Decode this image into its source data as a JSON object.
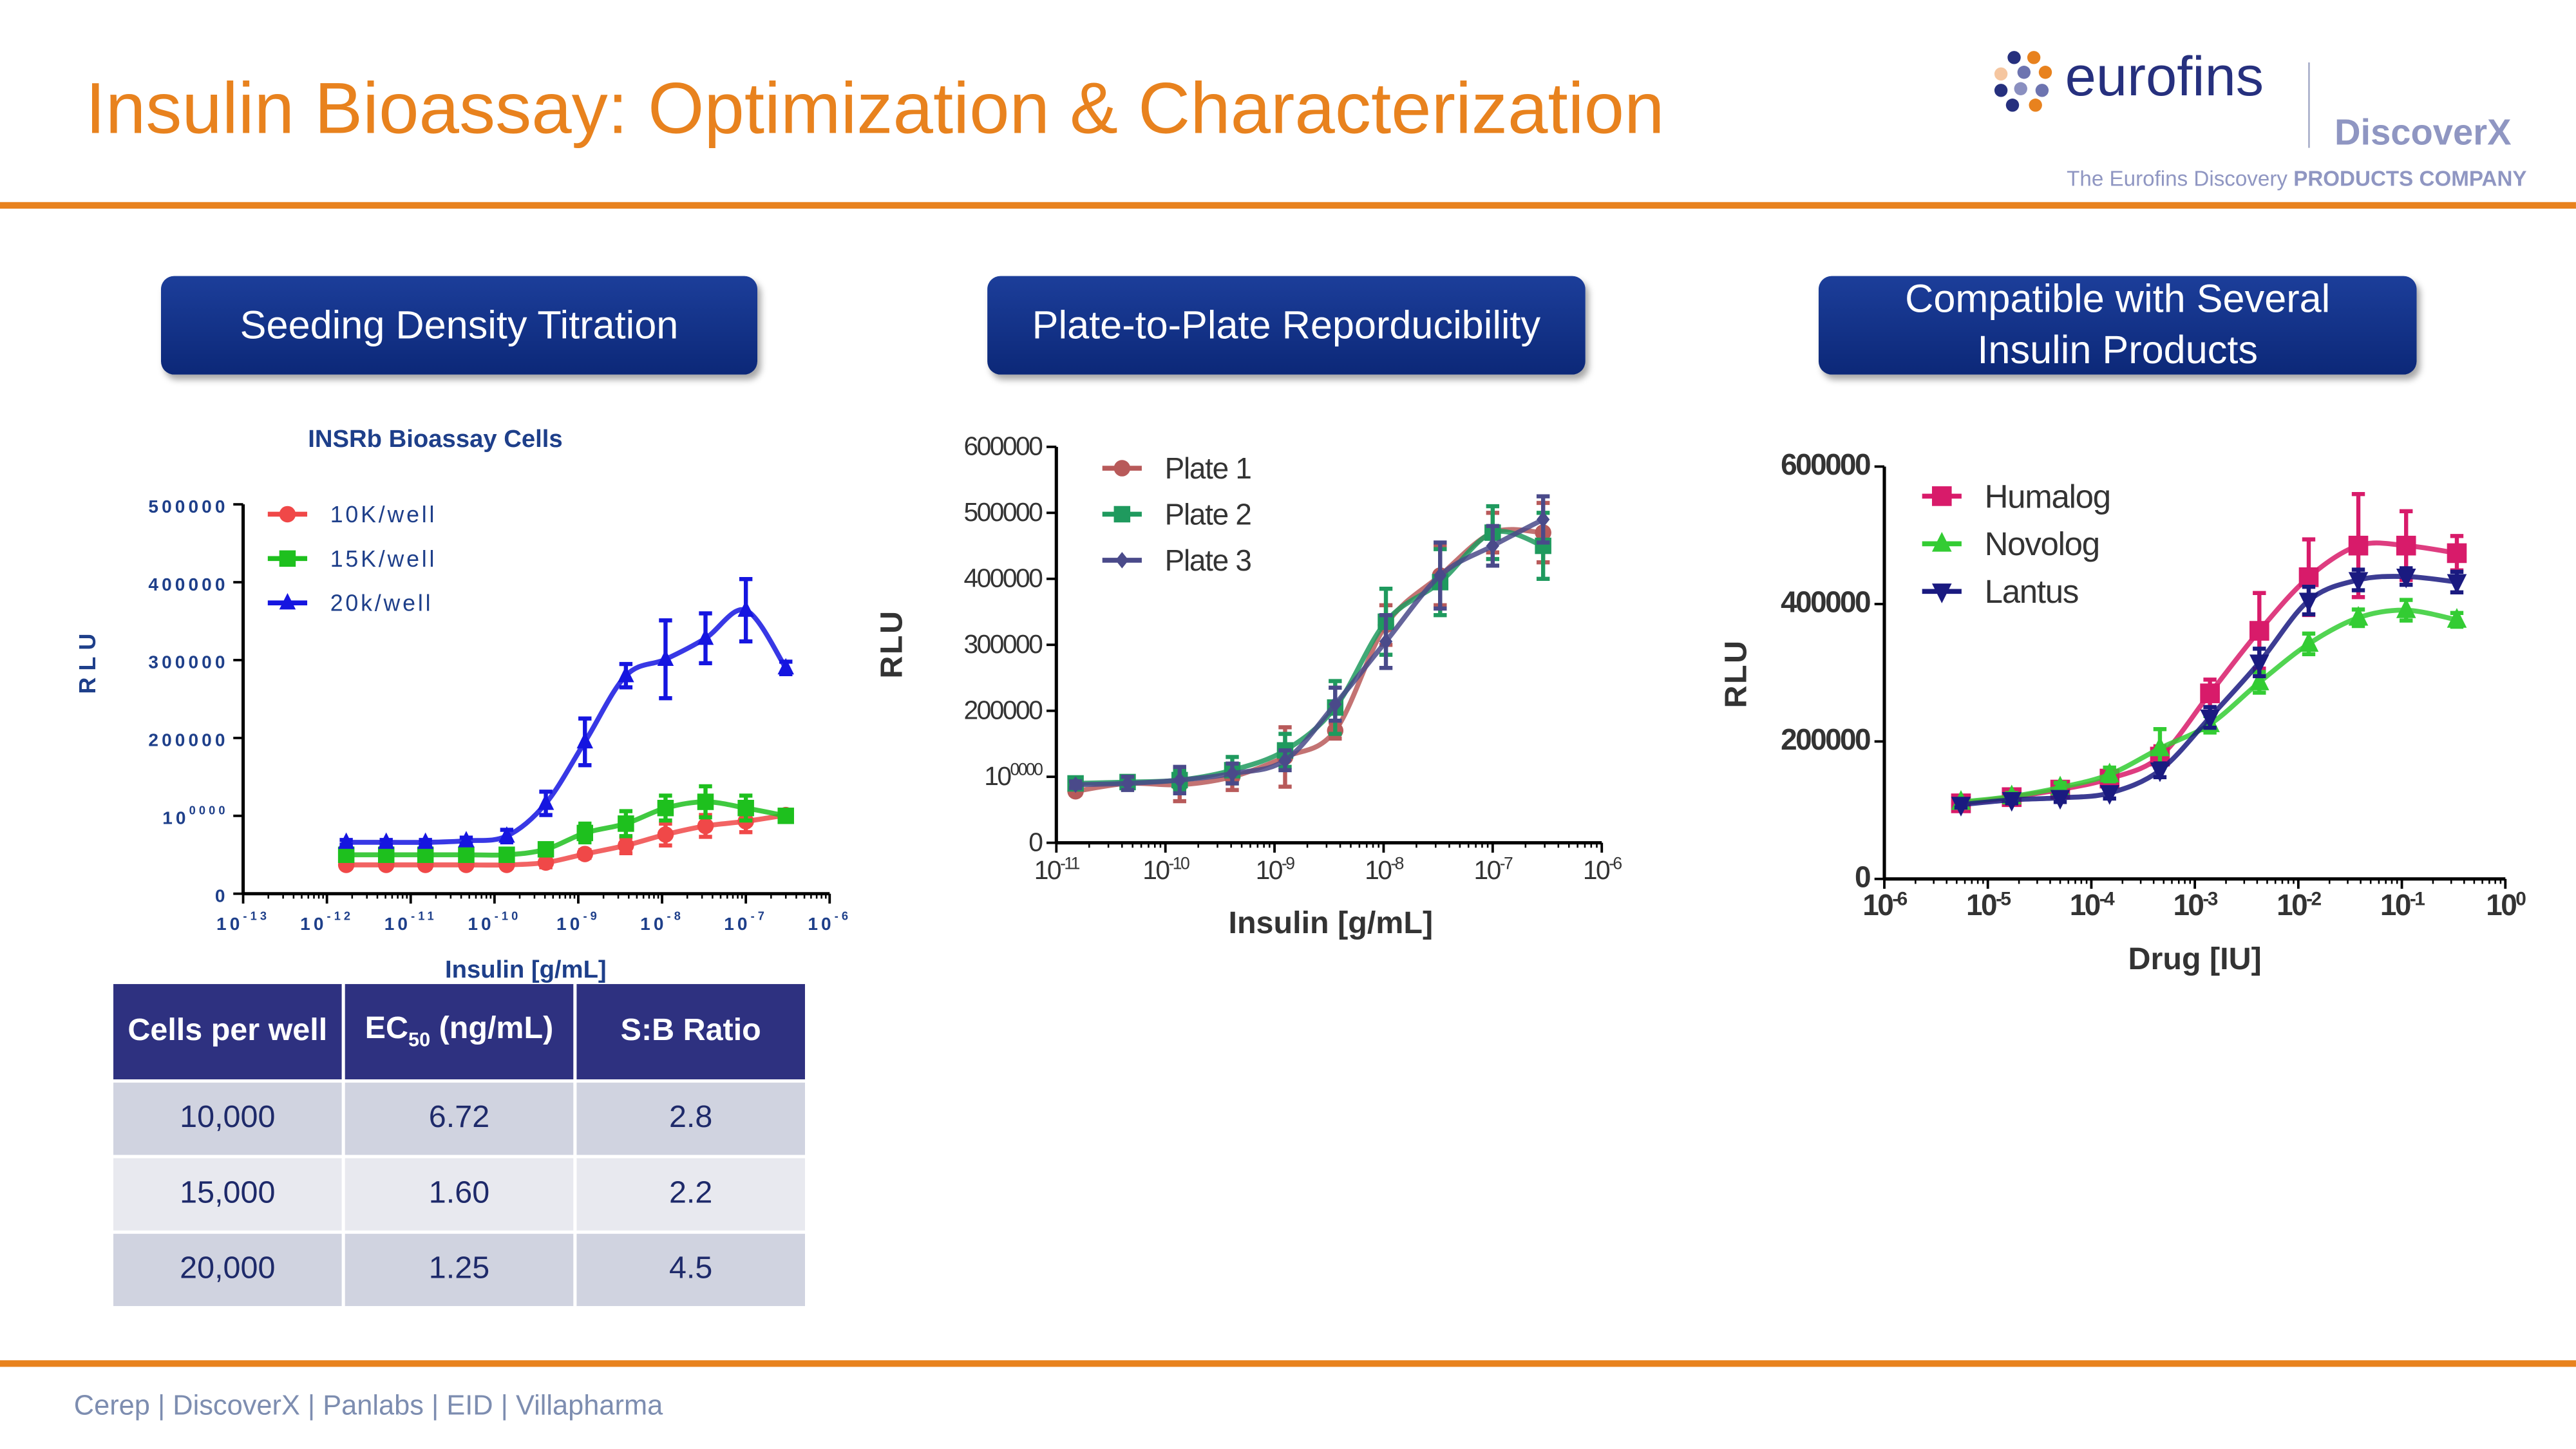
{
  "header": {
    "title": "Insulin Bioassay: Optimization & Characterization",
    "logo": {
      "brand": "eurofins",
      "sub_brand": "DiscoverX",
      "tagline_light": "The Eurofins Discovery ",
      "tagline_bold": "PRODUCTS COMPANY"
    }
  },
  "accent_color": "#E8821E",
  "sections": [
    {
      "label": "Seeding Density Titration"
    },
    {
      "label": "Plate-to-Plate Reporducibility"
    },
    {
      "label": "Compatible with Several Insulin Products"
    }
  ],
  "table": {
    "headers": {
      "cells": "Cells per well",
      "ec50_main": "EC",
      "ec50_sub": "50",
      "ec50_unit": " (ng/mL)",
      "sb": "S:B Ratio"
    },
    "rows": [
      [
        "10,000",
        "6.72",
        "2.8"
      ],
      [
        "15,000",
        "1.60",
        "2.2"
      ],
      [
        "20,000",
        "1.25",
        "4.5"
      ]
    ]
  },
  "footer": {
    "text": "Cerep | DiscoverX | Panlabs | EID | Villapharma"
  },
  "chart_data": [
    {
      "type": "scatter",
      "title": "INSRb Bioassay Cells",
      "xlabel": "Insulin [g/mL]",
      "ylabel": "RLU",
      "xscale": "log",
      "xlim": [
        1e-13,
        1e-06
      ],
      "ylim": [
        0,
        500000
      ],
      "xticks": [
        "10 -13",
        "10 -12",
        "10 -11",
        "10 -10",
        "10 -9",
        "10 -8",
        "10 -7",
        "10 -6"
      ],
      "yticks": [
        "0",
        "100000",
        "200000",
        "300000",
        "400000",
        "500000"
      ],
      "legend": "top-left",
      "grid": false,
      "x": [
        1.7e-12,
        5.1e-12,
        1.5e-11,
        4.6e-11,
        1.4e-10,
        4.1e-10,
        1.2e-09,
        3.7e-09,
        1.1e-08,
        3.3e-08,
        1e-07,
        3e-07
      ],
      "series": [
        {
          "name": "10K/well",
          "color": "#f04848",
          "marker": "circle",
          "values": [
            37000,
            37000,
            37000,
            37000,
            37000,
            40000,
            51000,
            62000,
            76000,
            87000,
            93000,
            101000
          ],
          "errors": [
            4000,
            4000,
            4000,
            4000,
            4000,
            6000,
            5000,
            10000,
            14000,
            14000,
            14000,
            5000
          ]
        },
        {
          "name": "15K/well",
          "color": "#1ec01e",
          "marker": "square",
          "values": [
            50000,
            50000,
            50000,
            50000,
            50000,
            57000,
            78000,
            90000,
            110000,
            118000,
            110000,
            100000
          ],
          "errors": [
            4000,
            4000,
            4000,
            4000,
            4000,
            6000,
            12000,
            16000,
            16000,
            20000,
            16000,
            5000
          ]
        },
        {
          "name": "20k/well",
          "color": "#1515e0",
          "marker": "triangle",
          "values": [
            66000,
            66000,
            66000,
            68000,
            74000,
            116000,
            195000,
            280000,
            301000,
            328000,
            364000,
            290000
          ],
          "errors": [
            3000,
            3000,
            3000,
            4000,
            8000,
            15000,
            30000,
            15000,
            50000,
            32000,
            40000,
            8000
          ]
        }
      ]
    },
    {
      "type": "scatter",
      "title": "",
      "xlabel": "Insulin [g/mL]",
      "ylabel": "RLU",
      "xscale": "log",
      "xlim": [
        1e-11,
        1e-06
      ],
      "ylim": [
        0,
        600000
      ],
      "xticks": [
        "10-11",
        "10-10",
        "10-9",
        "10-8",
        "10-7",
        "10-6"
      ],
      "yticks": [
        "0",
        "100000",
        "200000",
        "300000",
        "400000",
        "500000",
        "600000"
      ],
      "legend": "top-left",
      "grid": false,
      "x": [
        1.5e-11,
        4.5e-11,
        1.35e-10,
        4.1e-10,
        1.25e-09,
        3.6e-09,
        1.05e-08,
        3.3e-08,
        1e-07,
        2.9e-07
      ],
      "series": [
        {
          "name": "Plate 1",
          "color": "#b85a5a",
          "marker": "circle",
          "values": [
            78000,
            90000,
            88000,
            100000,
            130000,
            170000,
            330000,
            405000,
            470000,
            470000
          ],
          "errors": [
            5000,
            8000,
            25000,
            20000,
            45000,
            12000,
            30000,
            45000,
            30000,
            45000
          ]
        },
        {
          "name": "Plate 2",
          "color": "#1f9a5e",
          "marker": "square",
          "values": [
            90000,
            92000,
            95000,
            110000,
            140000,
            205000,
            335000,
            395000,
            470000,
            450000
          ],
          "errors": [
            5000,
            8000,
            15000,
            20000,
            25000,
            40000,
            50000,
            50000,
            40000,
            50000
          ]
        },
        {
          "name": "Plate 3",
          "color": "#4a4a8a",
          "marker": "diamond",
          "values": [
            88000,
            90000,
            95000,
            105000,
            125000,
            210000,
            305000,
            405000,
            450000,
            490000
          ],
          "errors": [
            5000,
            10000,
            20000,
            15000,
            15000,
            25000,
            40000,
            50000,
            30000,
            35000
          ]
        }
      ]
    },
    {
      "type": "scatter",
      "title": "",
      "xlabel": "Drug [IU]",
      "ylabel": "RLU",
      "xscale": "log",
      "xlim": [
        1e-06,
        1
      ],
      "ylim": [
        0,
        600000
      ],
      "xticks": [
        "10-6",
        "10-5",
        "10-4",
        "10-3",
        "10-2",
        "10-1",
        "100"
      ],
      "yticks": [
        "0",
        "200000",
        "400000",
        "600000"
      ],
      "legend": "top-left",
      "grid": false,
      "x": [
        5.5e-06,
        1.7e-05,
        5e-05,
        0.00015,
        0.00046,
        0.0014,
        0.0042,
        0.0126,
        0.038,
        0.11,
        0.34
      ],
      "series": [
        {
          "name": "Humalog",
          "color": "#d81b6a",
          "marker": "square",
          "values": [
            110000,
            119000,
            130000,
            146000,
            178000,
            270000,
            361000,
            439000,
            485000,
            485000,
            474000
          ],
          "errors": [
            5000,
            5000,
            8000,
            10000,
            15000,
            20000,
            55000,
            55000,
            75000,
            50000,
            25000
          ]
        },
        {
          "name": "Novolog",
          "color": "#33cc33",
          "marker": "triangle",
          "values": [
            112000,
            120000,
            133000,
            152000,
            190000,
            225000,
            286000,
            342000,
            380000,
            391000,
            377000
          ],
          "errors": [
            4000,
            5000,
            7000,
            10000,
            28000,
            12000,
            15000,
            15000,
            12000,
            15000,
            10000
          ]
        },
        {
          "name": "Lantus",
          "color": "#1a1a80",
          "marker": "triangle-down",
          "values": [
            108000,
            115000,
            118000,
            125000,
            158000,
            235000,
            315000,
            405000,
            435000,
            440000,
            432000
          ],
          "errors": [
            4000,
            5000,
            6000,
            8000,
            10000,
            15000,
            20000,
            20000,
            15000,
            12000,
            15000
          ]
        }
      ]
    }
  ]
}
